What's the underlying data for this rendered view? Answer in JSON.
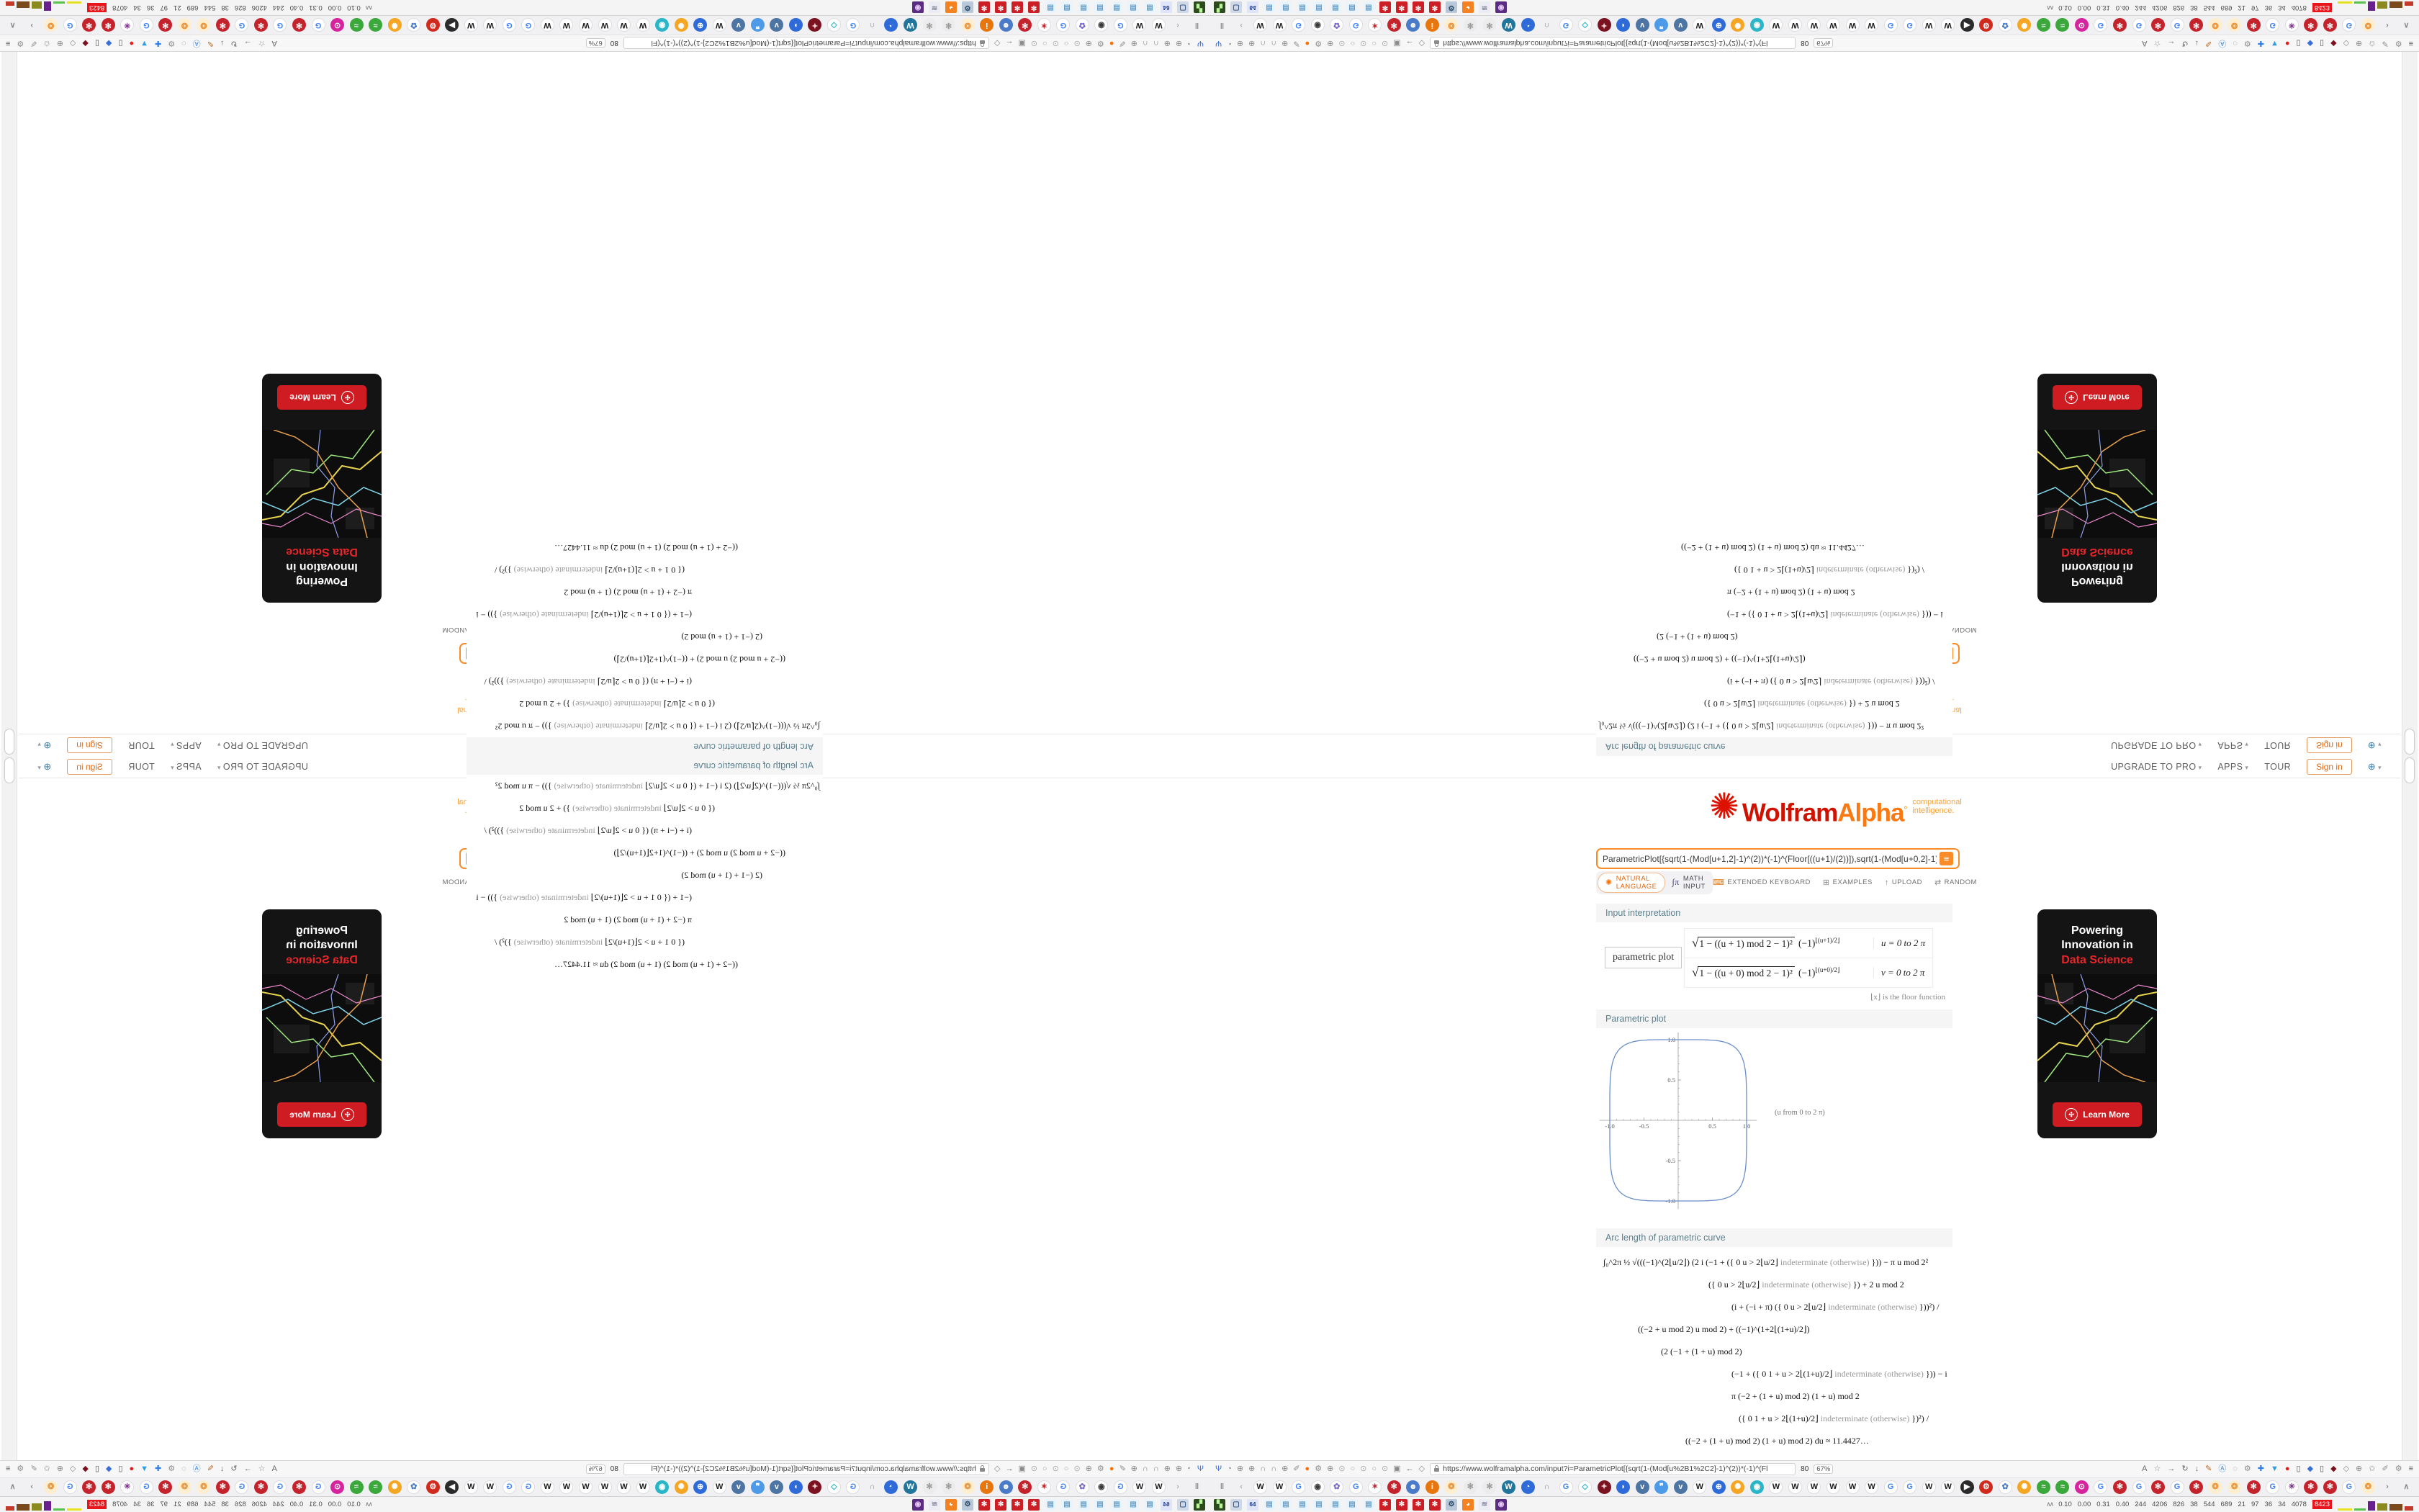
{
  "composite": {
    "note": "single browser screenshot tiled 2x2 with mirror symmetry",
    "quadrants": [
      {
        "name": "bottom-right",
        "transform": "none"
      },
      {
        "name": "bottom-left",
        "transform": "scaleX(-1)"
      },
      {
        "name": "top-right",
        "transform": "scaleY(-1)"
      },
      {
        "name": "top-left",
        "transform": "scale(-1,-1)"
      }
    ]
  },
  "site_nav": {
    "items": [
      {
        "label": "UPGRADE TO PRO",
        "caret": true
      },
      {
        "label": "APPS",
        "caret": true
      },
      {
        "label": "TOUR",
        "caret": false
      }
    ],
    "signin_label": "Sign in",
    "language_icon": "globe-icon"
  },
  "logo": {
    "brand_wolfram": "Wolfram",
    "brand_alpha": "Alpha",
    "trademark": "°",
    "tagline_line1": "computational",
    "tagline_line2": "intelligence."
  },
  "search": {
    "value": "ParametricPlot[{sqrt(1-(Mod[u+1,2]-1)^(2))*(-1)^(Floor[((u+1)/(2))]),sqrt(1-(Mod[u+0,2]-1)^(2))*(-1)^(Floo",
    "submit_icon": "assuming-icon"
  },
  "modes": {
    "natural_language": "NATURAL LANGUAGE",
    "math_input": "MATH INPUT",
    "right_items": [
      {
        "label": "EXTENDED KEYBOARD",
        "icon": "keyboard-icon",
        "glyph": "⌨",
        "orange": true
      },
      {
        "label": "EXAMPLES",
        "icon": "examples-grid-icon",
        "glyph": "⊞",
        "orange": false
      },
      {
        "label": "UPLOAD",
        "icon": "upload-icon",
        "glyph": "↑",
        "orange": false
      },
      {
        "label": "RANDOM",
        "icon": "shuffle-icon",
        "glyph": "⇄",
        "orange": false
      }
    ]
  },
  "pods": {
    "interpretation": {
      "title": "Input interpretation",
      "label_box": "parametric plot",
      "rows": [
        {
          "radicand": "1 − ((u + 1) mod 2 − 1)²",
          "exp_base": "(−1)",
          "exp_sup": "⌊(u+1)/2⌋",
          "range": "u = 0 to 2 π"
        },
        {
          "radicand": "1 − ((u + 0) mod 2 − 1)²",
          "exp_base": "(−1)",
          "exp_sup": "⌊(u+0)/2⌋",
          "range": "v = 0 to 2 π"
        }
      ],
      "footnote": "⌊x⌋ is the floor function"
    },
    "plot": {
      "title": "Parametric plot",
      "axis_note": "(u from 0 to 2 π)"
    },
    "arc_length": {
      "title": "Arc length of parametric curve",
      "lines": [
        {
          "indent": 4,
          "pre": "∫₀^2π  ½ √(((−1)^(2⌊u/2⌋) (2 i (−1 + ({ 0   u > 2⌊u/2⌋  ",
          "gray": "indeterminate (otherwise)",
          "post": " })) − π u mod 2²"
        },
        {
          "indent": 150,
          "pre": "({ 0   u > 2⌊u/2⌋  ",
          "gray": "indeterminate (otherwise)",
          "post": " }) + 2 u mod 2"
        },
        {
          "indent": 182,
          "pre": "(i + (−i + π) ({ 0   u > 2⌊u/2⌋  ",
          "gray": "indeterminate (otherwise)",
          "post": " }))²) /"
        },
        {
          "indent": 52,
          "pre": "((−2 + u mod 2) u mod 2) + ((−1)^(1+2⌊(1+u)/2⌋)",
          "gray": "",
          "post": ""
        },
        {
          "indent": 84,
          "pre": "(2 (−1 + (1 + u) mod 2)",
          "gray": "",
          "post": ""
        },
        {
          "indent": 182,
          "pre": "(−1 + ({ 0   1 + u > 2⌊(1+u)/2⌋  ",
          "gray": "indeterminate (otherwise)",
          "post": " })) − i"
        },
        {
          "indent": 182,
          "pre": "π (−2 + (1 + u) mod 2) (1 + u) mod 2",
          "gray": "",
          "post": ""
        },
        {
          "indent": 192,
          "pre": "({ 0   1 + u > 2⌊(1+u)/2⌋  ",
          "gray": "indeterminate (otherwise)",
          "post": " })²) /",
          "gray2": ""
        },
        {
          "indent": 118,
          "pre": "((−2 + (1 + u) mod 2) (1 + u) mod 2) du ≈ 11.4427…",
          "gray": "",
          "post": ""
        }
      ],
      "result": "≈ 11.4427…"
    }
  },
  "ad": {
    "line1": "Powering",
    "line2": "Innovation in",
    "line3": "Data Science",
    "button_label": "Learn More",
    "accent_red": "#e8252b"
  },
  "chart_data": {
    "type": "line",
    "title": "Parametric plot",
    "x_expression": "x(u) = sqrt(1 − ((u+1) mod 2 − 1)^2) · (−1)^⌊(u+1)/2⌋",
    "y_expression": "y(u) = sqrt(1 − ((u+0) mod 2 − 1)^2) · (−1)^⌊(u+0)/2⌋",
    "u_domain": "0 to 2π",
    "curve_description": "closed rounded-square (squircle) through (±1,0) and (0,±1)",
    "squircle_exponent": 5,
    "xlim": [
      -1.15,
      1.15
    ],
    "ylim": [
      -1.1,
      1.1
    ],
    "x_ticks": [
      -1.0,
      -0.5,
      0.5,
      1.0
    ],
    "y_ticks": [
      -1.0,
      -0.5,
      0.5,
      1.0
    ],
    "minor_tick_step": 0.1,
    "line_color": "#6b8fc9",
    "axis_color": "#9a9a9a",
    "label_color": "#555555",
    "annotation": "(u from 0 to 2 π)",
    "arc_length_value": "11.4427…",
    "grid": false,
    "legend": false
  },
  "browser": {
    "url": "https://www.wolframalpha.com/input?i=ParametricPlot[{sqrt(1-(Mod[u%2B1%2C2]-1)^(2))*(-1)^(Fl",
    "url_suffix": "80",
    "zoom_level": "67%",
    "navbar_left_icons": [
      {
        "name": "extension-icon",
        "g": "Ψ",
        "f": "#3a6fd8"
      },
      {
        "name": "account-icon",
        "g": "◔",
        "f": "#8a8a8a"
      },
      {
        "name": "globe-icon",
        "g": "⊕",
        "f": "#8a8a8a"
      },
      {
        "name": "globe-icon",
        "g": "⊕",
        "f": "#8a8a8a"
      },
      {
        "name": "headset-icon",
        "g": "∩",
        "f": "#8a8a8a"
      },
      {
        "name": "headset-icon",
        "g": "∩",
        "f": "#8a8a8a"
      },
      {
        "name": "globe-icon",
        "g": "⊕",
        "f": "#8a8a8a"
      },
      {
        "name": "wrench-icon",
        "g": "✐",
        "f": "#8a8a8a"
      },
      {
        "name": "firefox-icon",
        "g": "●",
        "f": "#f5740a"
      },
      {
        "name": "gear-icon",
        "g": "⚙",
        "f": "#8a8a8a"
      },
      {
        "name": "globe-icon",
        "g": "⊕",
        "f": "#8a8a8a"
      },
      {
        "name": "tab-dot-icon",
        "g": "⊙",
        "f": "#a8a8a8"
      },
      {
        "name": "tab-dot-icon",
        "g": "○",
        "f": "#a8a8a8"
      },
      {
        "name": "tab-dot-icon",
        "g": "⊙",
        "f": "#a8a8a8"
      },
      {
        "name": "tab-dot-icon",
        "g": "○",
        "f": "#a8a8a8"
      },
      {
        "name": "tab-dot-icon",
        "g": "⊙",
        "f": "#a8a8a8"
      },
      {
        "name": "folder-icon",
        "g": "▣",
        "f": "#8a8a8a"
      },
      {
        "name": "back-arrow-icon",
        "g": "←",
        "f": "#666666"
      },
      {
        "name": "shield-icon",
        "g": "◇",
        "f": "#8a8a8a"
      }
    ],
    "navbar_right_icons": [
      {
        "name": "reader-icon",
        "g": "A",
        "f": "#666666"
      },
      {
        "name": "bookmark-star-icon",
        "g": "☆",
        "f": "#888888"
      },
      {
        "name": "forward-arrow-icon",
        "g": "→",
        "f": "#666666"
      },
      {
        "name": "reload-icon",
        "g": "↻",
        "f": "#666666"
      },
      {
        "name": "download-icon",
        "g": "↓",
        "f": "#666666"
      },
      {
        "name": "highlighter-icon",
        "g": "✎",
        "f": "#b5651d"
      },
      {
        "name": "translate-icon",
        "g": "Ⓐ",
        "f": "#4a90d9"
      },
      {
        "name": "mouse-icon",
        "g": "◌",
        "f": "#8a8a8a"
      },
      {
        "name": "gear-icon",
        "g": "⚙",
        "f": "#8a8a8a"
      },
      {
        "name": "add-blue-icon",
        "g": "✚",
        "f": "#2f7de1"
      },
      {
        "name": "shield-down-icon",
        "g": "▼",
        "f": "#2f9de1"
      },
      {
        "name": "record-dot-icon",
        "g": "●",
        "f": "#e02020"
      },
      {
        "name": "trash-icon",
        "g": "▯",
        "f": "#555555"
      },
      {
        "name": "share-icon",
        "g": "◆",
        "f": "#3a6fd8"
      },
      {
        "name": "trash-icon",
        "g": "▯",
        "f": "#555555"
      },
      {
        "name": "shield-uo-icon",
        "g": "◆",
        "f": "#7a1220"
      },
      {
        "name": "shield-gray-icon",
        "g": "◇",
        "f": "#8a8a8a"
      },
      {
        "name": "globe-icon",
        "g": "⊕",
        "f": "#8a8a8a"
      },
      {
        "name": "like-icon",
        "g": "✩",
        "f": "#8a8a8a"
      },
      {
        "name": "wrench-icon",
        "g": "✐",
        "f": "#8a8a8a"
      },
      {
        "name": "gear-icon",
        "g": "⚙",
        "f": "#8a8a8a"
      },
      {
        "name": "menu-icon",
        "g": "≡",
        "f": "#555555"
      }
    ],
    "bookmarks": [
      {
        "name": "pause-icon",
        "g": "‖",
        "f": "#8a8a8a",
        "b": "none"
      },
      {
        "name": "chevron-icon",
        "g": "‹",
        "f": "#b0b0b0",
        "b": "none"
      },
      {
        "name": "wikipedia-favicon",
        "g": "W",
        "f": "#1a1a1a",
        "b": "#ffffff"
      },
      {
        "name": "wikipedia-favicon",
        "g": "W",
        "f": "#1a1a1a",
        "b": "#ffffff"
      },
      {
        "name": "google-favicon",
        "g": "G",
        "f": "#4285f4",
        "b": "#ffffff"
      },
      {
        "name": "target-favicon",
        "g": "◉",
        "f": "#3a3a3a",
        "b": "#ffffff"
      },
      {
        "name": "flower-favicon",
        "g": "✿",
        "f": "#7b68c8",
        "b": "#ffffff"
      },
      {
        "name": "google-favicon",
        "g": "G",
        "f": "#4285f4",
        "b": "#ffffff"
      },
      {
        "name": "star-favicon",
        "g": "✶",
        "f": "#c4232b",
        "b": "#ffffff"
      },
      {
        "name": "wolfram-favicon",
        "g": "✻",
        "f": "#ffffff",
        "b": "#c4232b"
      },
      {
        "name": "people-favicon",
        "g": "☻",
        "f": "#ffffff",
        "b": "#4a7bc8"
      },
      {
        "name": "info-favicon",
        "g": "i",
        "f": "#ffffff",
        "b": "#e8760e"
      },
      {
        "name": "mandala-favicon",
        "g": "❂",
        "f": "#e8923a",
        "b": "#fdeecf"
      },
      {
        "name": "gray-flower-favicon",
        "g": "✻",
        "f": "#9a9a9a",
        "b": "#ececec"
      },
      {
        "name": "gray-flower-favicon",
        "g": "✻",
        "f": "#9a9a9a",
        "b": "#ececec"
      },
      {
        "name": "wordpress-favicon",
        "g": "W",
        "f": "#ffffff",
        "b": "#21759b"
      },
      {
        "name": "swirl-favicon",
        "g": "◔",
        "f": "#ffffff",
        "b": "#2f6bd8"
      },
      {
        "name": "arc-favicon",
        "g": "∩",
        "f": "#8a8a8a",
        "b": "none"
      },
      {
        "name": "google-favicon",
        "g": "G",
        "f": "#4285f4",
        "b": "#ffffff"
      },
      {
        "name": "cube-favicon",
        "g": "◇",
        "f": "#2ab5c8",
        "b": "#ffffff"
      },
      {
        "name": "nea-favicon",
        "g": "✦",
        "f": "#f0d0d0",
        "b": "#7a1220"
      },
      {
        "name": "drop-favicon",
        "g": "◗",
        "f": "#ffffff",
        "b": "#2f6bd8"
      },
      {
        "name": "vk-favicon",
        "g": "v",
        "f": "#ffffff",
        "b": "#4c75a3"
      },
      {
        "name": "chat-favicon",
        "g": "❞",
        "f": "#ffffff",
        "b": "#4c9ae8"
      },
      {
        "name": "vk-favicon",
        "g": "v",
        "f": "#ffffff",
        "b": "#4c75a3"
      },
      {
        "name": "wikipedia-favicon",
        "g": "W",
        "f": "#1a1a1a",
        "b": "#ffffff"
      },
      {
        "name": "globe-favicon",
        "g": "⊕",
        "f": "#ffffff",
        "b": "#2f6bd8"
      },
      {
        "name": "spikey-favicon",
        "g": "✺",
        "f": "#ffffff",
        "b": "#f5a623"
      },
      {
        "name": "teal-favicon",
        "g": "◉",
        "f": "#ffffff",
        "b": "#2ab5c8"
      },
      {
        "name": "wikipedia-favicon",
        "g": "W",
        "f": "#1a1a1a",
        "b": "#ffffff"
      },
      {
        "name": "wikipedia-favicon",
        "g": "W",
        "f": "#1a1a1a",
        "b": "#ffffff"
      },
      {
        "name": "wikipedia-favicon",
        "g": "W",
        "f": "#1a1a1a",
        "b": "#ffffff"
      },
      {
        "name": "wikipedia-favicon",
        "g": "W",
        "f": "#1a1a1a",
        "b": "#ffffff"
      },
      {
        "name": "wikipedia-favicon",
        "g": "W",
        "f": "#1a1a1a",
        "b": "#ffffff"
      },
      {
        "name": "wikipedia-favicon",
        "g": "W",
        "f": "#1a1a1a",
        "b": "#ffffff"
      },
      {
        "name": "google-favicon",
        "g": "G",
        "f": "#4285f4",
        "b": "#ffffff"
      },
      {
        "name": "google-favicon",
        "g": "G",
        "f": "#4285f4",
        "b": "#ffffff"
      },
      {
        "name": "wikipedia-favicon",
        "g": "W",
        "f": "#1a1a1a",
        "b": "#ffffff"
      },
      {
        "name": "wikipedia-favicon",
        "g": "W",
        "f": "#1a1a1a",
        "b": "#ffffff"
      },
      {
        "name": "play-favicon",
        "g": "▶",
        "f": "#ffffff",
        "b": "#2a2a2a"
      },
      {
        "name": "red-gear-favicon",
        "g": "⚙",
        "f": "#ffffff",
        "b": "#d02a1e"
      },
      {
        "name": "blue-flower-favicon",
        "g": "✿",
        "f": "#4a7bc8",
        "b": "#ffffff"
      },
      {
        "name": "spikey-favicon",
        "g": "✺",
        "f": "#ffffff",
        "b": "#f5a623"
      },
      {
        "name": "wave-favicon",
        "g": "≈",
        "f": "#ffffff",
        "b": "#3aa83a"
      },
      {
        "name": "wave-favicon",
        "g": "≈",
        "f": "#ffffff",
        "b": "#3aa83a"
      },
      {
        "name": "instagram-favicon",
        "g": "⊙",
        "f": "#ffffff",
        "b": "#d6249f"
      },
      {
        "name": "google-favicon",
        "g": "G",
        "f": "#4285f4",
        "b": "#ffffff"
      },
      {
        "name": "wolfram-favicon",
        "g": "✻",
        "f": "#ffffff",
        "b": "#c4232b"
      },
      {
        "name": "google-favicon",
        "g": "G",
        "f": "#4285f4",
        "b": "#ffffff"
      },
      {
        "name": "wolfram-favicon",
        "g": "✻",
        "f": "#ffffff",
        "b": "#c4232b"
      },
      {
        "name": "google-favicon",
        "g": "G",
        "f": "#4285f4",
        "b": "#ffffff"
      },
      {
        "name": "wolfram-favicon",
        "g": "✻",
        "f": "#ffffff",
        "b": "#c4232b"
      },
      {
        "name": "mandala-favicon",
        "g": "❂",
        "f": "#e8923a",
        "b": "#fdeecf"
      },
      {
        "name": "mandala-favicon",
        "g": "❂",
        "f": "#e8923a",
        "b": "#fdeecf"
      },
      {
        "name": "wolfram-favicon",
        "g": "✻",
        "f": "#ffffff",
        "b": "#c4232b"
      },
      {
        "name": "google-favicon",
        "g": "G",
        "f": "#4285f4",
        "b": "#ffffff"
      },
      {
        "name": "purple-rays-favicon",
        "g": "✳",
        "f": "#7b2d8b",
        "b": "#ffffff"
      },
      {
        "name": "wolfram-favicon",
        "g": "✻",
        "f": "#ffffff",
        "b": "#c4232b"
      },
      {
        "name": "wolfram-favicon",
        "g": "✻",
        "f": "#ffffff",
        "b": "#c4232b"
      },
      {
        "name": "google-favicon",
        "g": "G",
        "f": "#4285f4",
        "b": "#ffffff"
      },
      {
        "name": "mandala-favicon",
        "g": "❂",
        "f": "#e8923a",
        "b": "#fdeecf"
      },
      {
        "name": "overflow-chevron-icon",
        "g": "›",
        "f": "#8a8a8a",
        "b": "none"
      },
      {
        "name": "collapse-chevron-icon",
        "g": "∧",
        "f": "#8a8a8a",
        "b": "none"
      }
    ],
    "taskbar_icons": [
      {
        "name": "console-app-icon",
        "g": "▚",
        "f": "#baf79a",
        "b": "#2d4a1e"
      },
      {
        "name": "monitor-app-icon",
        "g": "▢",
        "f": "#3a5a8a",
        "b": "#cfd8e6"
      },
      {
        "name": "floppy-app-icon",
        "g": "64",
        "f": "#1a3a8a",
        "b": "#dfe4f8"
      },
      {
        "name": "notepad-app-icon",
        "g": "▤",
        "f": "#6aa0c8",
        "b": "#eaf4fd"
      },
      {
        "name": "notepad-app-icon",
        "g": "▤",
        "f": "#6aa0c8",
        "b": "#eaf4fd"
      },
      {
        "name": "notepad-app-icon",
        "g": "▤",
        "f": "#6aa0c8",
        "b": "#eaf4fd"
      },
      {
        "name": "notepad-app-icon",
        "g": "▤",
        "f": "#6aa0c8",
        "b": "#eaf4fd"
      },
      {
        "name": "notepad-app-icon",
        "g": "▤",
        "f": "#6aa0c8",
        "b": "#eaf4fd"
      },
      {
        "name": "notepad-app-icon",
        "g": "▤",
        "f": "#6aa0c8",
        "b": "#eaf4fd"
      },
      {
        "name": "notepad-app-icon",
        "g": "▤",
        "f": "#6aa0c8",
        "b": "#eaf4fd"
      },
      {
        "name": "wolfram-app-icon",
        "g": "✻",
        "f": "#ffffff",
        "b": "#cc1f25"
      },
      {
        "name": "wolfram-app-icon",
        "g": "✻",
        "f": "#ffffff",
        "b": "#cc1f25"
      },
      {
        "name": "wolfram-app-icon",
        "g": "✻",
        "f": "#ffffff",
        "b": "#cc1f25"
      },
      {
        "name": "wolfram-app-icon",
        "g": "✻",
        "f": "#ffffff",
        "b": "#cc1f25"
      },
      {
        "name": "settings-app-icon",
        "g": "⚙",
        "f": "#2a4a6a",
        "b": "#b8c8d8"
      },
      {
        "name": "firefox-app-icon",
        "g": "◕",
        "f": "#ffffff",
        "b": "#f58220"
      },
      {
        "name": "script-app-icon",
        "g": "≋",
        "f": "#8a8aa0",
        "b": "#ececf4"
      },
      {
        "name": "owl-app-icon",
        "g": "◉",
        "f": "#e8c8f8",
        "b": "#5b2d82"
      }
    ],
    "stats_values": [
      "0.10",
      "0.00",
      "0.31",
      "0.40",
      "244",
      "4206",
      "826",
      "38",
      "544",
      "689",
      "21",
      "97",
      "36",
      "34",
      "4078"
    ],
    "stats_hot": "8423",
    "stats_bars": [
      {
        "c": "#e8e21f",
        "w": 20,
        "h": 3
      },
      {
        "c": "#58c24a",
        "w": 16,
        "h": 3
      },
      {
        "c": "#6a1f8f",
        "w": 10,
        "h": 13
      },
      {
        "c": "#8a8a1f",
        "w": 14,
        "h": 10
      },
      {
        "c": "#7a4a1a",
        "w": 18,
        "h": 9
      },
      {
        "c": "#c43a2a",
        "w": 12,
        "h": 6
      }
    ]
  }
}
